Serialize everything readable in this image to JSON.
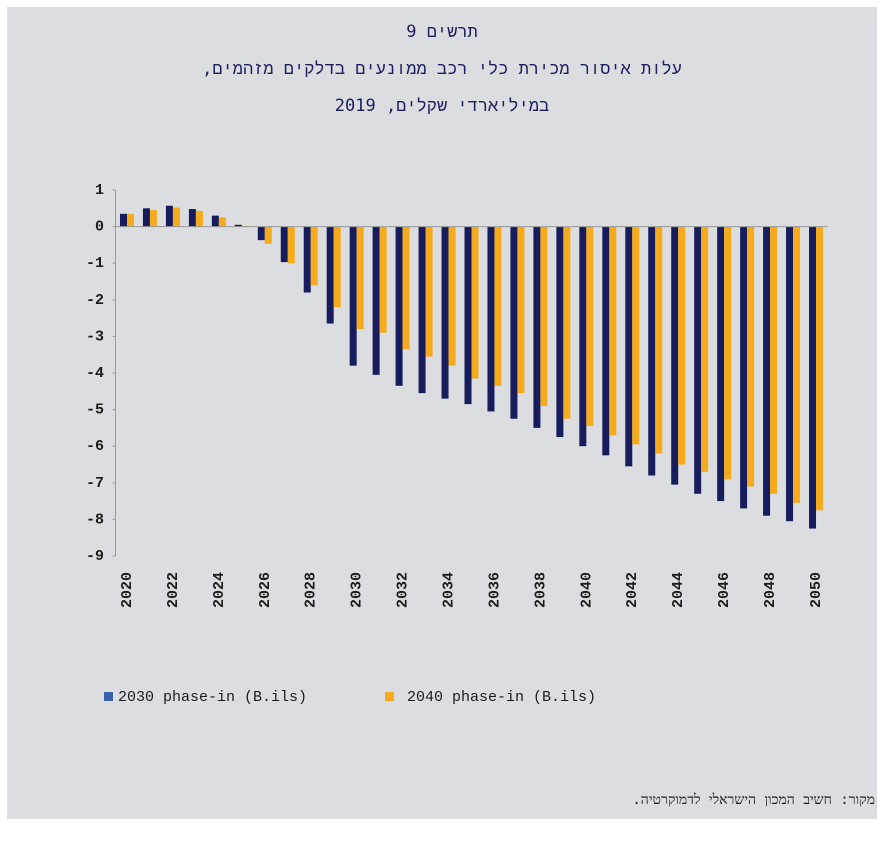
{
  "chart_data": {
    "type": "bar",
    "title_lines": [
      "תרשים 9",
      "עלות איסור מכירת כלי רכב ממונעים בדלקים מזהמים,",
      "במיליארדי שקלים, 2019"
    ],
    "source": "מקור: חשיב המכון הישראלי לדמוקרטיה.",
    "categories": [
      "2020",
      null,
      "2022",
      null,
      "2024",
      null,
      "2026",
      null,
      "2028",
      null,
      "2030",
      null,
      "2032",
      null,
      "2034",
      null,
      "2036",
      null,
      "2038",
      null,
      "2040",
      null,
      "2042",
      null,
      "2044",
      null,
      "2046",
      null,
      "2048",
      null,
      "2050"
    ],
    "series": [
      {
        "name": "2030 phase-in (B.ils)",
        "color": "#171c5c",
        "values": [
          0.35,
          0.5,
          0.57,
          0.48,
          0.3,
          0.05,
          -0.37,
          -0.97,
          -1.8,
          -2.65,
          -3.8,
          -4.05,
          -4.35,
          -4.55,
          -4.7,
          -4.85,
          -5.05,
          -5.25,
          -5.5,
          -5.75,
          -6.0,
          -6.25,
          -6.55,
          -6.8,
          -7.05,
          -7.3,
          -7.5,
          -7.7,
          -7.9,
          -8.05,
          -8.25
        ]
      },
      {
        "name": "2040 phase-in (B.ils)",
        "color": "#f5ab1b",
        "values": [
          0.35,
          0.45,
          0.52,
          0.43,
          0.25,
          0.02,
          -0.47,
          -1.0,
          -1.6,
          -2.2,
          -2.8,
          -2.9,
          -3.35,
          -3.55,
          -3.8,
          -4.15,
          -4.35,
          -4.55,
          -4.9,
          -5.25,
          -5.45,
          -5.7,
          -5.95,
          -6.2,
          -6.5,
          -6.7,
          -6.9,
          -7.1,
          -7.3,
          -7.55,
          -7.75
        ]
      }
    ],
    "ylim": [
      -9,
      1
    ],
    "yticks": [
      1,
      0,
      -1,
      -2,
      -3,
      -4,
      -5,
      -6,
      -7,
      -8,
      -9
    ],
    "legend_colors": [
      "#3a5fae",
      "#f5ab1b"
    ]
  }
}
